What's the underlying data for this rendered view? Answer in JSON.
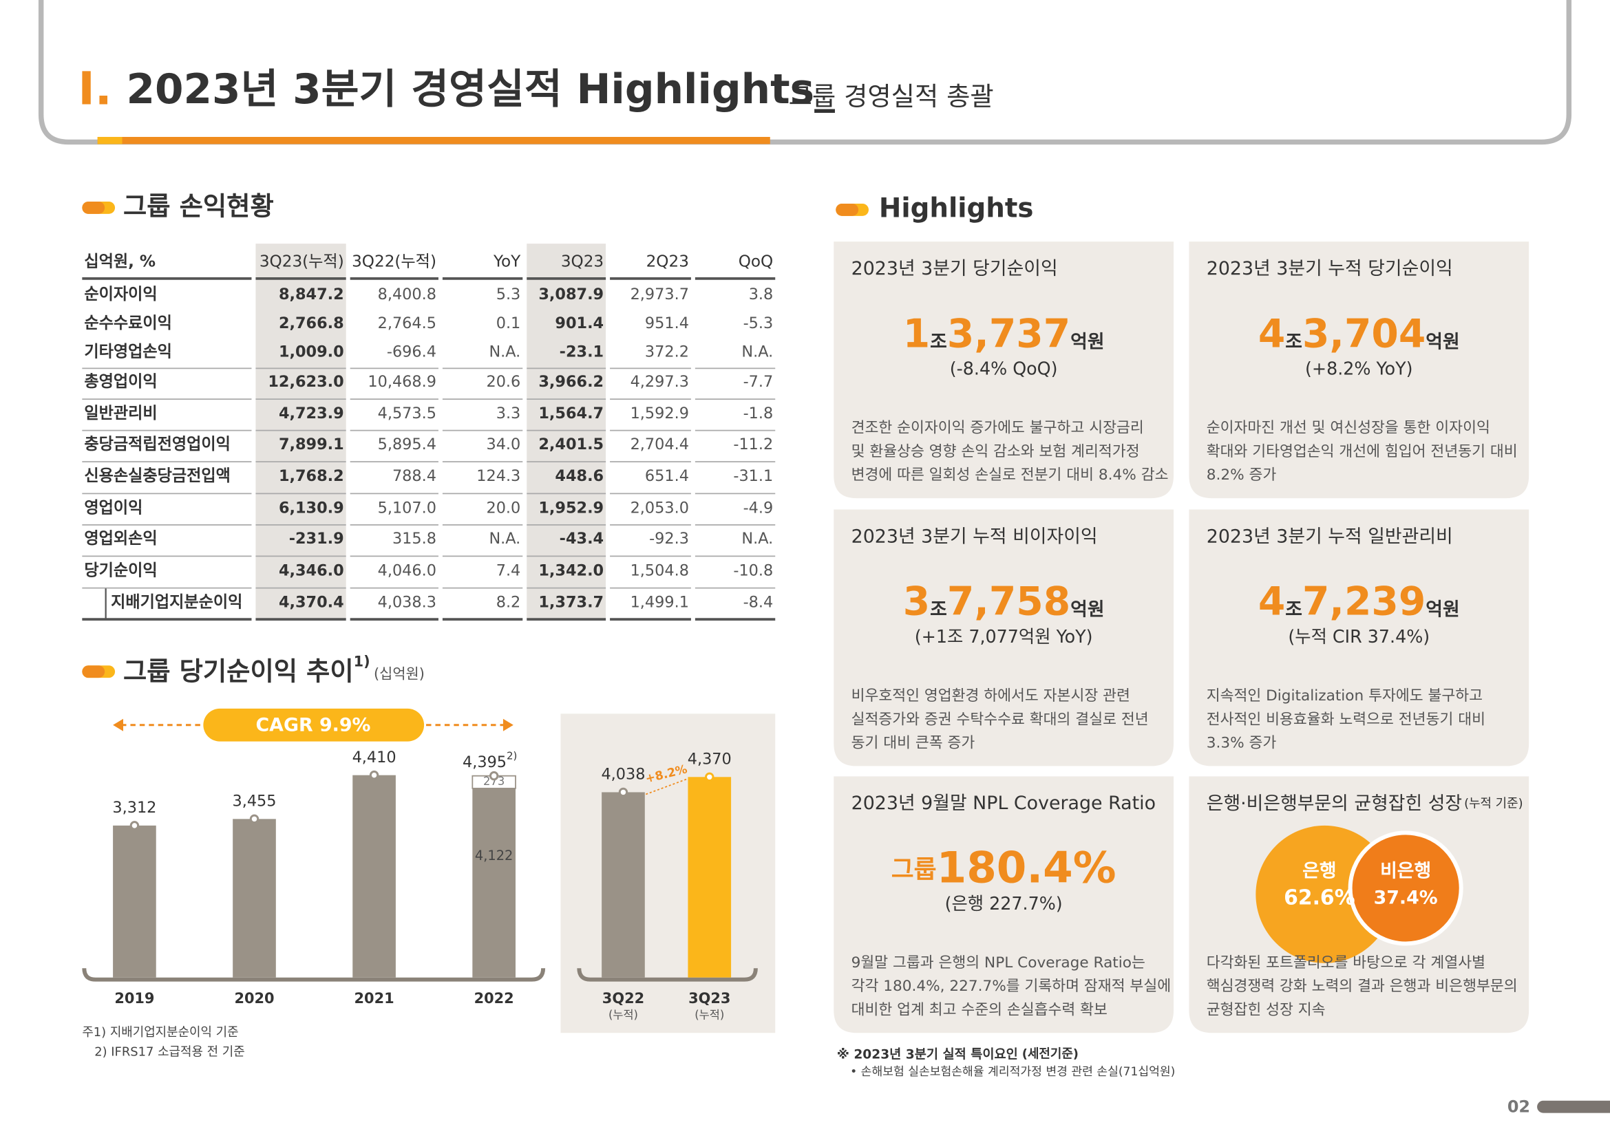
{
  "header": {
    "number": "I.",
    "title": "2023년 3분기 경영실적 Highlights_",
    "subtitle": "그룹 경영실적 총괄"
  },
  "income": {
    "heading": "그룹 손익현황",
    "columns": [
      "십억원, %",
      "3Q23(누적)",
      "3Q22(누적)",
      "YoY",
      "3Q23",
      "2Q23",
      "QoQ"
    ],
    "rows": [
      [
        "순이자이익",
        "8,847.2",
        "8,400.8",
        "5.3",
        "3,087.9",
        "2,973.7",
        "3.8"
      ],
      [
        "순수수료이익",
        "2,766.8",
        "2,764.5",
        "0.1",
        "901.4",
        "951.4",
        "-5.3"
      ],
      [
        "기타영업손익",
        "1,009.0",
        "-696.4",
        "N.A.",
        "-23.1",
        "372.2",
        "N.A."
      ],
      [
        "총영업이익",
        "12,623.0",
        "10,468.9",
        "20.6",
        "3,966.2",
        "4,297.3",
        "-7.7"
      ],
      [
        "일반관리비",
        "4,723.9",
        "4,573.5",
        "3.3",
        "1,564.7",
        "1,592.9",
        "-1.8"
      ],
      [
        "충당금적립전영업이익",
        "7,899.1",
        "5,895.4",
        "34.0",
        "2,401.5",
        "2,704.4",
        "-11.2"
      ],
      [
        "신용손실충당금전입액",
        "1,768.2",
        "788.4",
        "124.3",
        "448.6",
        "651.4",
        "-31.1"
      ],
      [
        "영업이익",
        "6,130.9",
        "5,107.0",
        "20.0",
        "1,952.9",
        "2,053.0",
        "-4.9"
      ],
      [
        "영업외손익",
        "-231.9",
        "315.8",
        "N.A.",
        "-43.4",
        "-92.3",
        "N.A."
      ],
      [
        "당기순이익",
        "4,346.0",
        "4,046.0",
        "7.4",
        "1,342.0",
        "1,504.8",
        "-10.8"
      ],
      [
        "지배기업지분순이익",
        "4,370.4",
        "4,038.3",
        "8.2",
        "1,373.7",
        "1,499.1",
        "-8.4"
      ]
    ]
  },
  "trend": {
    "heading": "그룹 당기순이익 추이",
    "heading_note": "1)",
    "unit": "(십억원)",
    "cagr": "CAGR 9.9%",
    "annual": {
      "type": "bar",
      "categories": [
        "2019",
        "2020",
        "2021",
        "2022"
      ],
      "values": [
        3312,
        3455,
        4410,
        4395
      ],
      "value_labels": [
        "3,312",
        "3,455",
        "4,410",
        "4,395"
      ],
      "note_2022": "2)",
      "split_2022": {
        "values": [
          4122,
          273
        ],
        "value_labels": [
          "4,122",
          "273"
        ]
      },
      "color": "#9a9287"
    },
    "cumulative": {
      "type": "bar",
      "categories": [
        "3Q22",
        "3Q23"
      ],
      "sublabels": [
        "(누적)",
        "(누적)"
      ],
      "values": [
        4038,
        4370
      ],
      "value_labels": [
        "4,038",
        "4,370"
      ],
      "colors": [
        "#9a9287",
        "#fbb61a"
      ],
      "growth": "+8.2%"
    },
    "footnotes": [
      "주1) 지배기업지분순이익 기준",
      "2) IFRS17 소급적용 전 기준"
    ]
  },
  "highlights": {
    "heading": "Highlights",
    "cards": [
      {
        "title": "2023년 3분기 당기순이익",
        "figure": [
          "1",
          "조",
          "3,737",
          "억원"
        ],
        "sub": "(-8.4% QoQ)",
        "desc": [
          "견조한 순이자이익 증가에도 불구하고 시장금리",
          "및 환율상승 영향 손익 감소와 보험 계리적가정",
          "변경에 따른 일회성 손실로 전분기 대비 8.4% 감소"
        ]
      },
      {
        "title": "2023년 3분기 누적 당기순이익",
        "figure": [
          "4",
          "조",
          "3,704",
          "억원"
        ],
        "sub": "(+8.2% YoY)",
        "desc": [
          "순이자마진 개선 및 여신성장을 통한 이자이익",
          "확대와 기타영업손익 개선에 힘입어 전년동기 대비",
          "8.2% 증가"
        ]
      },
      {
        "title": "2023년 3분기 누적 비이자이익",
        "figure": [
          "3",
          "조",
          "7,758",
          "억원"
        ],
        "sub": "(+1조 7,077억원 YoY)",
        "desc": [
          "비우호적인 영업환경 하에서도 자본시장 관련",
          "실적증가와 증권 수탁수수료 확대의 결실로 전년",
          "동기 대비 큰폭 증가"
        ]
      },
      {
        "title": "2023년 3분기 누적 일반관리비",
        "figure": [
          "4",
          "조",
          "7,239",
          "억원"
        ],
        "sub": "(누적 CIR 37.4%)",
        "desc": [
          "지속적인 Digitalization 투자에도 불구하고",
          "전사적인 비용효율화 노력으로 전년동기 대비",
          "3.3% 증가"
        ]
      },
      {
        "title": "2023년 9월말 NPL Coverage Ratio",
        "figure": [
          "그룹",
          "180.4%"
        ],
        "sub": "(은행 227.7%)",
        "desc": [
          "9월말 그룹과 은행의 NPL Coverage Ratio는",
          "각각 180.4%, 227.7%를 기록하며 잠재적 부실에",
          "대비한 업계 최고 수준의 손실흡수력 확보"
        ]
      }
    ],
    "mix": {
      "title": "은행·비은행부문의 균형잡힌 성장",
      "title_note": "(누적 기준)",
      "bank": [
        "은행",
        "62.6%"
      ],
      "nonbank": [
        "비은행",
        "37.4%"
      ],
      "desc": [
        "다각화된 포트폴리오를 바탕으로 각 계열사별",
        "핵심경쟁력 강화 노력의 결과 은행과 비은행부문의",
        "균형잡힌 성장 지속"
      ]
    }
  },
  "special_note": {
    "title": "※ 2023년 3분기 실적 특이요인",
    "title_note": "(세전기준)",
    "item": "• 손해보험 실손보험손해율 계리적가정 변경 관련 손실(71십억원)"
  },
  "page_number": "02"
}
